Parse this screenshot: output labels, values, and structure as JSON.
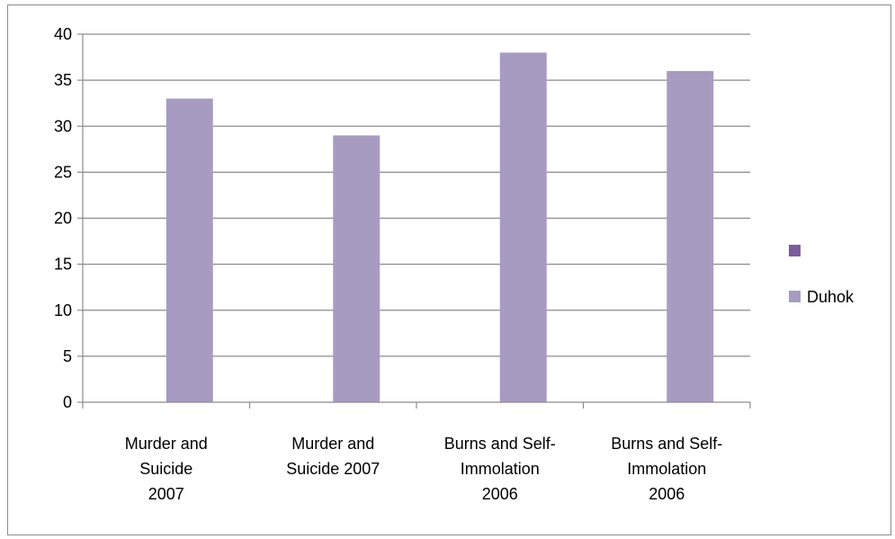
{
  "chart_data": {
    "type": "bar",
    "categories": [
      [
        "Murder and",
        "Suicide",
        "2007"
      ],
      [
        "Murder and",
        "Suicide 2007"
      ],
      [
        "Burns and  Self-",
        "Immolation",
        "2006"
      ],
      [
        "Burns and  Self-",
        "Immolation",
        "2006"
      ]
    ],
    "series": [
      {
        "name": "",
        "color": "#7b5c9a",
        "values": [
          0,
          0,
          0,
          0
        ]
      },
      {
        "name": "Duhok",
        "color": "#a89bc1",
        "values": [
          33,
          29,
          38,
          36
        ]
      }
    ],
    "ylim": [
      0,
      40
    ],
    "yticks": [
      "0",
      "5",
      "10",
      "15",
      "20",
      "25",
      "30",
      "35",
      "40"
    ],
    "grid": true,
    "legend_position": "right"
  }
}
